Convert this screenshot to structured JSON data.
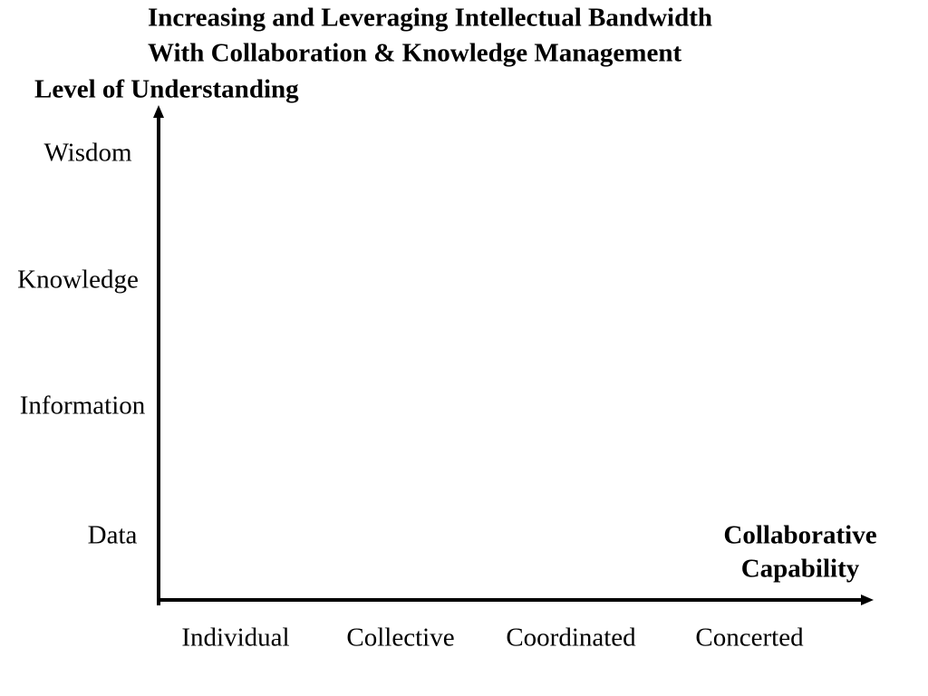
{
  "title": [
    "Increasing and Leveraging Intellectual Bandwidth",
    "With Collaboration & Knowledge Management"
  ],
  "y_axis": {
    "label": "Level of Understanding",
    "levels": [
      "Wisdom",
      "Knowledge",
      "Information",
      "Data"
    ]
  },
  "x_axis": {
    "label": [
      "Collaborative",
      "Capability"
    ],
    "levels": [
      "Individual",
      "Collective",
      "Coordinated",
      "Concerted"
    ]
  }
}
